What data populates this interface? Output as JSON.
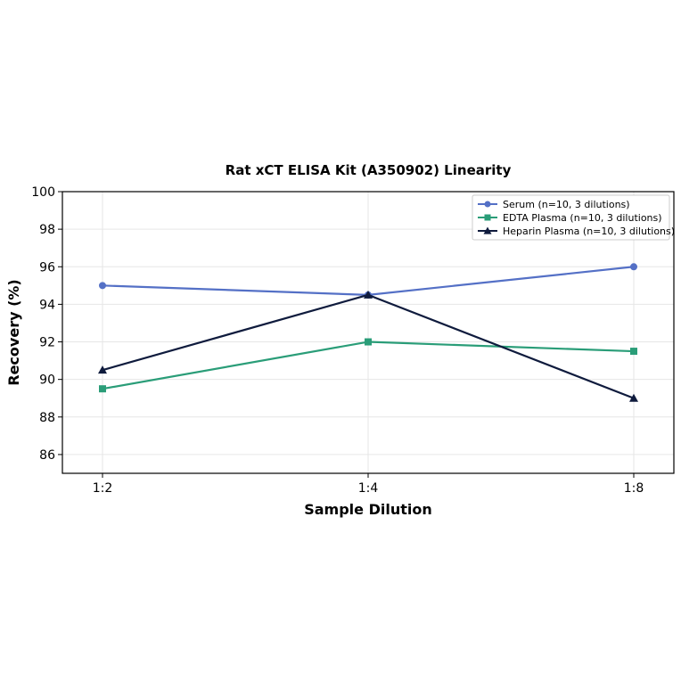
{
  "chart_data": {
    "type": "line",
    "title": "Rat xCT ELISA Kit (A350902) Linearity",
    "xlabel": "Sample Dilution",
    "ylabel": "Recovery (%)",
    "categories": [
      "1:2",
      "1:4",
      "1:8"
    ],
    "ylim": [
      85,
      100
    ],
    "yticks": [
      86,
      88,
      90,
      92,
      94,
      96,
      98,
      100
    ],
    "grid": true,
    "legend_position": "top-right",
    "series": [
      {
        "name": "Serum (n=10, 3 dilutions)",
        "values": [
          95.0,
          94.5,
          96.0
        ],
        "color": "#5470c6",
        "marker": "circle"
      },
      {
        "name": "EDTA Plasma (n=10, 3 dilutions)",
        "values": [
          89.5,
          92.0,
          91.5
        ],
        "color": "#2a9d78",
        "marker": "square"
      },
      {
        "name": "Heparin Plasma (n=10, 3 dilutions)",
        "values": [
          90.5,
          94.5,
          89.0
        ],
        "color": "#0f1b3d",
        "marker": "triangle"
      }
    ]
  }
}
